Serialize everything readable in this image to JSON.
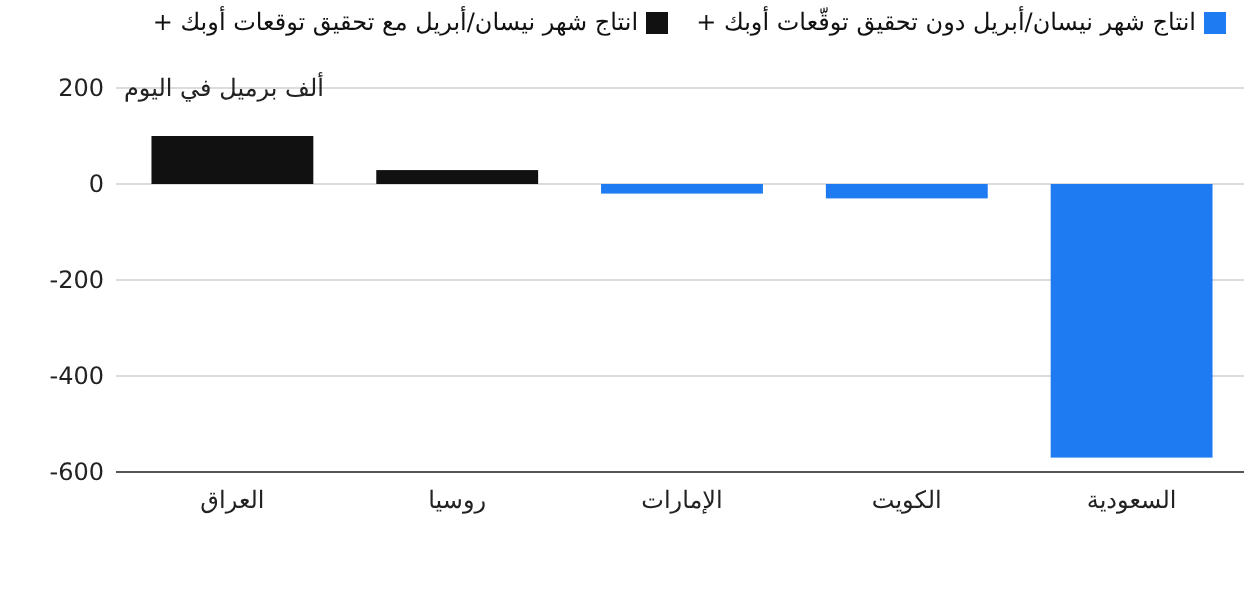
{
  "chart_data": {
    "type": "bar",
    "categories": [
      "العراق",
      "روسيا",
      "الإمارات",
      "الكويت",
      "السعودية"
    ],
    "series": [
      {
        "name": "انتاج شهر نيسان/أبريل دون تحقيق توقّعات أوبك +",
        "color": "#1f7bf2",
        "values": [
          null,
          null,
          -20,
          -30,
          -570
        ]
      },
      {
        "name": "انتاج شهر نيسان/أبريل مع تحقيق توقعات أوبك +",
        "color": "#111111",
        "values": [
          100,
          29,
          null,
          null,
          null
        ]
      }
    ],
    "ylim": [
      -600,
      200
    ],
    "yticks": [
      -600,
      -400,
      -200,
      0,
      200
    ],
    "grid": "y",
    "legend": "top",
    "annotations": [
      "ألف برميل في اليوم"
    ]
  }
}
